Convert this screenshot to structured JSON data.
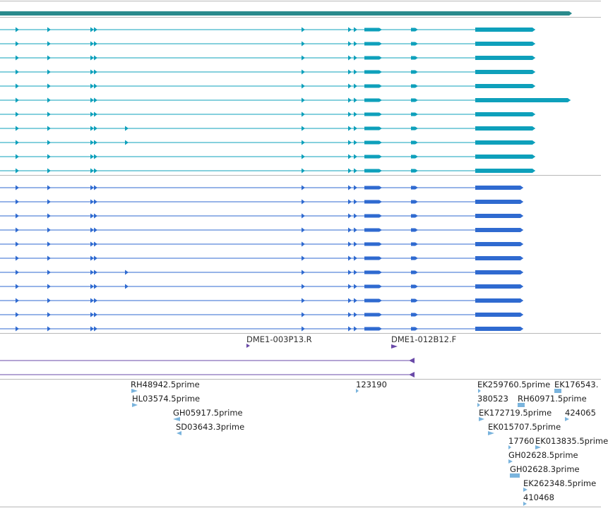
{
  "browser": {
    "colors": {
      "gene": "#2a8a8c",
      "transcripts_a": "#0ea0bb",
      "transcripts_b": "#2f6ad0",
      "probes": "#6a4aa8",
      "ests": "#7ab4dd",
      "divider": "#b8b8b8"
    },
    "tracks": {
      "gene_span": {
        "name": "gene-span"
      },
      "transcripts_a": {
        "count": 11,
        "name": "transcript-set-a"
      },
      "transcripts_b": {
        "count": 11,
        "name": "transcript-set-b"
      },
      "probes": {
        "labels": [
          "DME1-003P13.R",
          "DME1-012B12.F"
        ]
      },
      "ests": {
        "labels": [
          "RH48942.5prime",
          "HL03574.5prime",
          "GH05917.5prime",
          "SD03643.3prime",
          "123190",
          "EK259760.5prime",
          "EK176543.",
          "380523",
          "RH60971.5prime",
          "EK172719.5prime",
          "424065",
          "EK015707.5prime",
          "17760",
          "EK013835.5prime",
          "GH02628.5prime",
          "GH02628.3prime",
          "EK262348.5prime",
          "410468"
        ]
      }
    }
  }
}
